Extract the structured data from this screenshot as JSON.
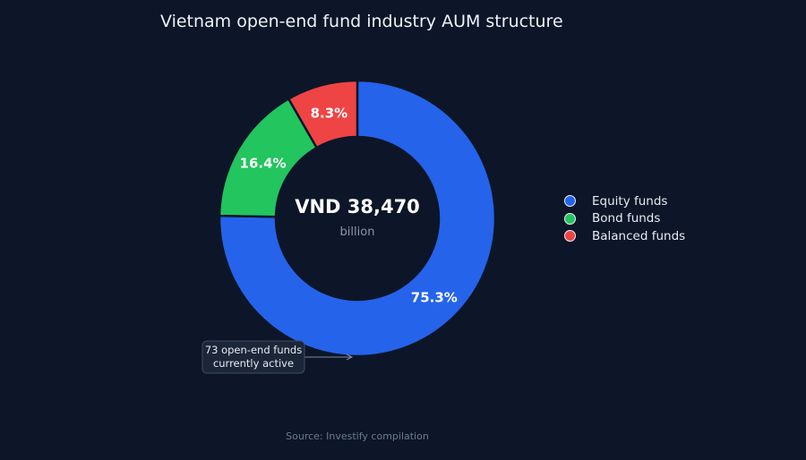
{
  "title": "Vietnam open-end fund industry AUM structure",
  "chart_data": {
    "type": "pie",
    "donut": true,
    "title": "Vietnam open-end fund industry AUM structure",
    "categories": [
      "Equity funds",
      "Bond funds",
      "Balanced funds"
    ],
    "values": [
      75.3,
      16.4,
      8.3
    ],
    "value_labels": [
      "75.3%",
      "16.4%",
      "8.3%"
    ],
    "colors": [
      "#2563eb",
      "#22c55e",
      "#ef4444"
    ],
    "center_value": "VND 38,470",
    "center_unit": "billion",
    "annotation": [
      "73 open-end funds",
      "currently active"
    ],
    "legend_position": "right"
  },
  "legend": [
    {
      "label": "Equity funds",
      "color": "#2563eb"
    },
    {
      "label": "Bond funds",
      "color": "#22c55e"
    },
    {
      "label": "Balanced funds",
      "color": "#ef4444"
    }
  ],
  "source": "Source: Investify compilation"
}
